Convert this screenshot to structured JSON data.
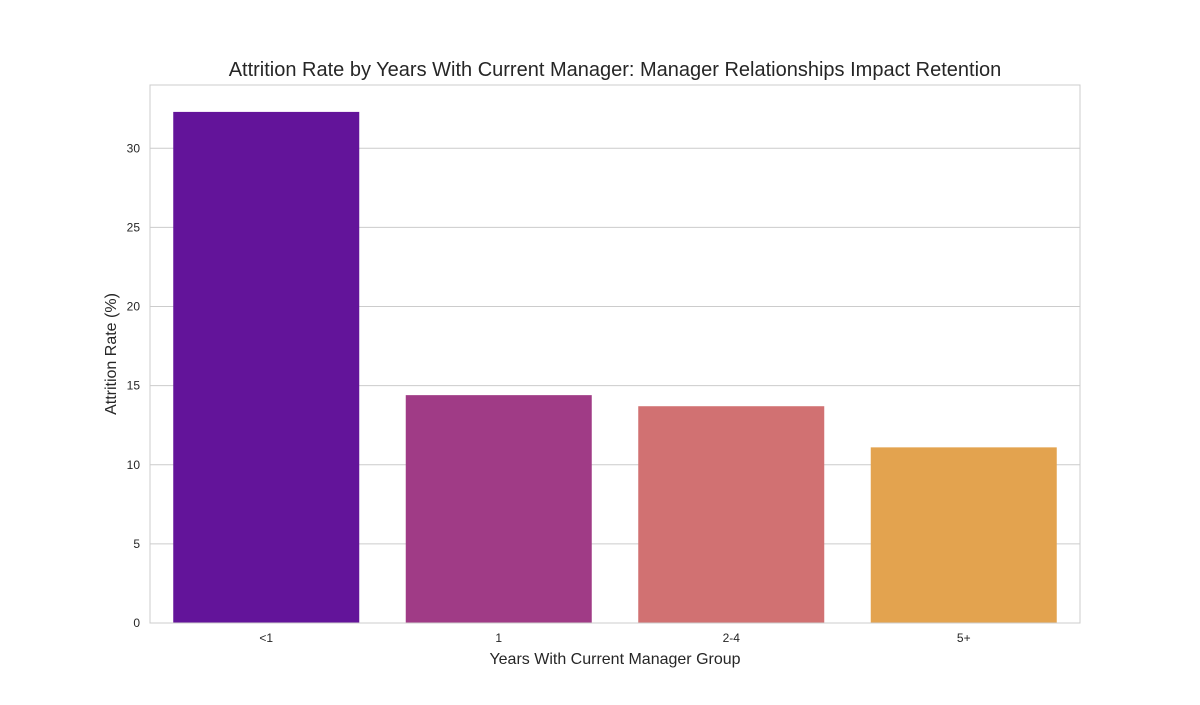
{
  "chart_data": {
    "type": "bar",
    "title": "Attrition Rate by Years With Current Manager: Manager Relationships Impact Retention",
    "xlabel": "Years With Current Manager Group",
    "ylabel": "Attrition Rate (%)",
    "categories": [
      "<1",
      "1",
      "2-4",
      "5+"
    ],
    "values": [
      32.3,
      14.4,
      13.7,
      11.1
    ],
    "colors": [
      "#63149a",
      "#a03b86",
      "#d17172",
      "#e3a34f"
    ],
    "yticks": [
      0,
      5,
      10,
      15,
      20,
      25,
      30
    ],
    "ylim": [
      0,
      34
    ],
    "grid": "horizontal",
    "legend": "none"
  }
}
